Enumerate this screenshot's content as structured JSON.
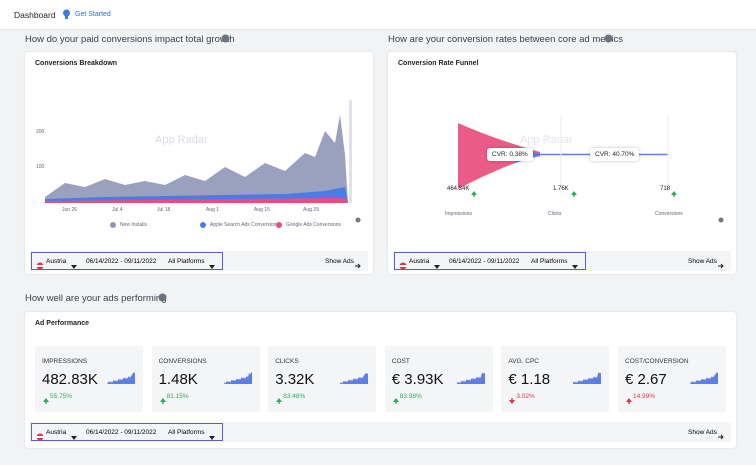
{
  "header": {
    "title": "Dashboard",
    "link": "Get Started"
  },
  "sections": [
    {
      "title": "How do your paid conversions impact total growth",
      "card": {
        "title": "Conversions Breakdown",
        "watermark": "App Radar",
        "y_labels": [
          "200",
          "100"
        ],
        "x_labels": [
          "Jun 26",
          "Jul 4",
          "Jul 18",
          "Aug 1",
          "Aug 15",
          "Aug 29"
        ],
        "legend": [
          {
            "name": "New Installs",
            "color": "#8f97b8"
          },
          {
            "name": "Apple Search Ads Conversions",
            "color": "#4c7be8"
          },
          {
            "name": "Google Ads Conversions",
            "color": "#e8507a"
          }
        ]
      }
    },
    {
      "title": "How are your conversion rates between core ad metrics",
      "card": {
        "title": "Conversion Rate Funnel",
        "watermark": "App Radar",
        "rates": [
          "CVR: 0.38%",
          "CVR: 40.70%"
        ],
        "stages": [
          {
            "value": "464.34K",
            "label": "Impressions"
          },
          {
            "value": "1.76K",
            "label": "Clicks"
          },
          {
            "value": "718",
            "label": "Conversions"
          }
        ]
      }
    },
    {
      "title": "How well are your ads performing",
      "card": {
        "title": "Ad Performance",
        "kpis": [
          {
            "label": "IMPRESSIONS",
            "value": "482.83K",
            "change": "55.75%",
            "direction": "up",
            "good": true
          },
          {
            "label": "CONVERSIONS",
            "value": "1.48K",
            "change": "81.15%",
            "direction": "up",
            "good": true
          },
          {
            "label": "CLICKS",
            "value": "3.32K",
            "change": "83.48%",
            "direction": "up",
            "good": true
          },
          {
            "label": "COST",
            "value": "€ 3.93K",
            "change": "83.98%",
            "direction": "up",
            "good": true
          },
          {
            "label": "AVG. CPC",
            "value": "€ 1.18",
            "change": "3.02%",
            "direction": "down",
            "good": false
          },
          {
            "label": "COST/CONVERSION",
            "value": "€ 2.67",
            "change": "14.99%",
            "direction": "up",
            "good": false
          }
        ]
      }
    }
  ],
  "filter_bars": [
    {
      "country": "Austria",
      "date_range": "06/14/2022 - 09/11/2022",
      "platforms": "All Platforms",
      "action": "Show Ads"
    },
    {
      "country": "Austria",
      "date_range": "06/14/2022 - 09/11/2022",
      "platforms": "All Platforms",
      "action": "Show Ads"
    },
    {
      "country": "Austria",
      "date_range": "06/14/2022 - 09/11/2022",
      "platforms": "All Platforms",
      "action": "Show Ads"
    }
  ]
}
